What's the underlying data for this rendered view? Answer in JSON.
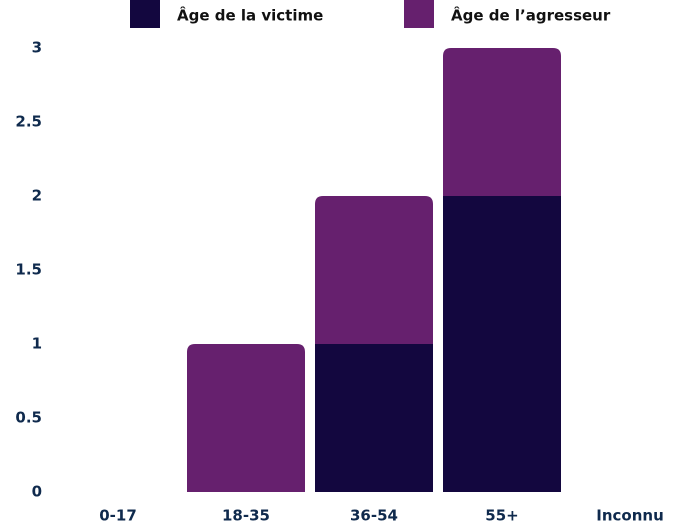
{
  "chart_data": {
    "type": "stacked_bar",
    "categories": [
      "0-17",
      "18-35",
      "36-54",
      "55+",
      "Inconnu"
    ],
    "series": [
      {
        "name": "Âge de la victime",
        "color": "#13073f",
        "values": [
          0,
          0,
          1,
          2,
          0
        ]
      },
      {
        "name": "Âge de l’agresseur",
        "color": "#66206e",
        "values": [
          0,
          1,
          1,
          1,
          0
        ]
      }
    ],
    "ylim": [
      0,
      3
    ],
    "yticks": [
      0,
      0.5,
      1,
      1.5,
      2,
      2.5,
      3
    ],
    "grid": false,
    "legend": "top"
  }
}
